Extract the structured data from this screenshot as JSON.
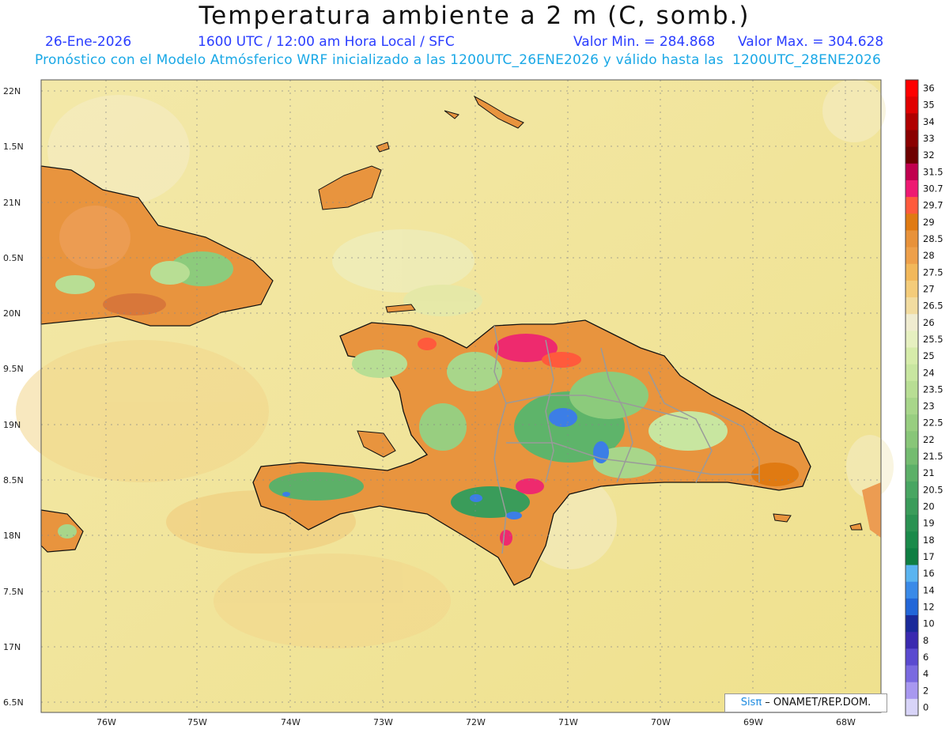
{
  "title": "Temperatura ambiente a 2 m (C, somb.)",
  "date": "26-Ene-2026",
  "time_info": "1600 UTC / 12:00 am Hora Local / SFC",
  "min_label": "Valor Min. = 284.868",
  "max_label": "Valor Max. = 304.628",
  "forecast_note": "Pronóstico con el Modelo Atmósferico WRF inicializado a las 1200UTC_26ENE2026 y válido hasta las  1200UTC_28ENE2026",
  "credit": {
    "brand": "Sisπ",
    "text": " – ONAMET/REP.DOM."
  },
  "lat_labels": [
    "22N",
    "1.5N",
    "21N",
    "0.5N",
    "20N",
    "9.5N",
    "19N",
    "8.5N",
    "18N",
    "7.5N",
    "17N",
    "6.5N"
  ],
  "lon_labels": [
    "76W",
    "75W",
    "74W",
    "73W",
    "72W",
    "71W",
    "70W",
    "69W",
    "68W"
  ],
  "colorbar": {
    "labels": [
      "36",
      "35",
      "34",
      "33",
      "32",
      "31.5",
      "30.7",
      "29.7",
      "29",
      "28.5",
      "28",
      "27.5",
      "27",
      "26.5",
      "26",
      "25.5",
      "25",
      "24",
      "23.5",
      "23",
      "22.5",
      "22",
      "21.5",
      "21",
      "20.5",
      "20",
      "19",
      "18",
      "17",
      "16",
      "14",
      "12",
      "10",
      "8",
      "6",
      "4",
      "2",
      "0"
    ],
    "colors": [
      "#ff0000",
      "#e00000",
      "#b00000",
      "#8a0000",
      "#6e0000",
      "#c0004e",
      "#ee1a72",
      "#ff5a3c",
      "#e07a12",
      "#e8923a",
      "#eea04a",
      "#f2b85a",
      "#f4cc7a",
      "#f2dca0",
      "#f0ecd0",
      "#e6f0c0",
      "#d6ecaa",
      "#c8e6a0",
      "#b8de94",
      "#a8d68a",
      "#98ce80",
      "#88c678",
      "#74bc70",
      "#5cb068",
      "#48a662",
      "#3a9c5a",
      "#2a9252",
      "#1a8a4a",
      "#0e7e42",
      "#5ab4f0",
      "#3a8ae8",
      "#2266d8",
      "#1a2a9a",
      "#3a2ab0",
      "#5a4ad0",
      "#7a6ae0",
      "#a898f0",
      "#d8d4f8"
    ]
  },
  "regions": {
    "sea": "#f1e59a",
    "hot": "#e8822e",
    "warm": "#f0a85a",
    "mild": "#f4c97a",
    "green": "#5eb46a",
    "cool": "#2c8a4c",
    "cold": "#3c7ee6",
    "very_hot": "#ee2a6e"
  }
}
